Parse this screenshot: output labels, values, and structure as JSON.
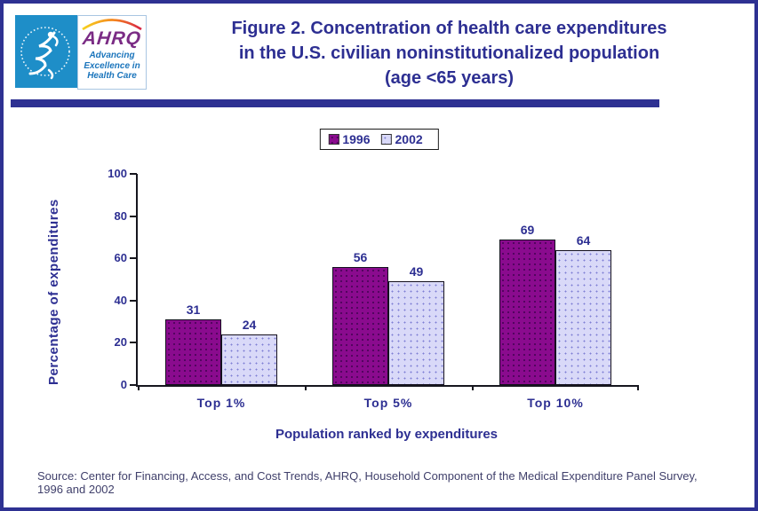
{
  "header": {
    "title_lines": [
      "Figure 2. Concentration of health care expenditures",
      "in the U.S. civilian noninstitutionalized population",
      "(age <65 years)"
    ],
    "logo": {
      "ahrq_text": "AHRQ",
      "tagline_lines": [
        "Advancing",
        "Excellence in",
        "Health Care"
      ]
    }
  },
  "chart_data": {
    "type": "bar",
    "categories": [
      "Top 1%",
      "Top 5%",
      "Top 10%"
    ],
    "series": [
      {
        "name": "1996",
        "color": "#8a0b8e",
        "values": [
          31,
          56,
          69
        ]
      },
      {
        "name": "2002",
        "color": "#d9d9f8",
        "values": [
          24,
          49,
          64
        ]
      }
    ],
    "xlabel": "Population ranked by expenditures",
    "ylabel": "Percentage of expenditures",
    "ylim": [
      0,
      100
    ],
    "yticks": [
      0,
      20,
      40,
      60,
      80,
      100
    ],
    "grid": false,
    "legend_position": "top-center",
    "value_labels": true
  },
  "footer": {
    "source_lines": [
      "Source: Center for Financing, Access, and Cost Trends, AHRQ, Household Component of the Medical Expenditure Panel Survey,",
      "1996 and 2002"
    ]
  },
  "colors": {
    "accent_navy": "#2e3192",
    "text_navy": "#2d2f92",
    "bar_1996": "#8a0b8e",
    "bar_2002": "#d9d9f8",
    "hhs_logo_blue": "#1e8ec8",
    "ahrq_purple": "#7b2c85",
    "ahrq_blue": "#1b75bc",
    "source_text": "#40406b"
  }
}
